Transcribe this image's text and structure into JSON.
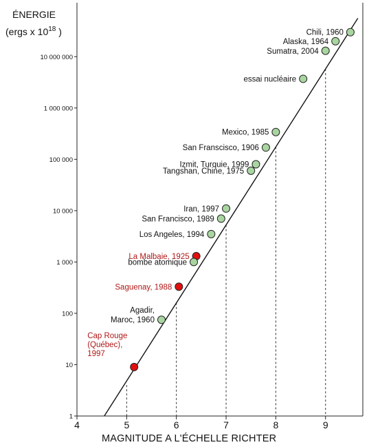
{
  "chart_data": {
    "type": "scatter",
    "ylabel_line1": "ÉNERGIE",
    "ylabel_line2_prefix": "(ergs x 10",
    "ylabel_line2_exp": "18",
    "ylabel_line2_suffix": " )",
    "xlabel": "MAGNITUDE A L'ÉCHELLE RICHTER",
    "xlim": [
      4,
      9.75
    ],
    "ylim_log10": [
      0,
      8.05
    ],
    "y_scale": "log",
    "x_ticks": [
      4,
      5,
      6,
      7,
      8,
      9
    ],
    "x_tick_labels": [
      "4",
      "5",
      "6",
      "7",
      "8",
      "9"
    ],
    "y_ticks": [
      1,
      10,
      100,
      1000,
      10000,
      100000,
      1000000,
      10000000
    ],
    "y_tick_labels": [
      "1",
      "10",
      "100",
      "1 000",
      "10 000",
      "100 000",
      "1 000 000",
      "10 000 000"
    ],
    "trend_line": {
      "x": [
        4.55,
        9.65
      ],
      "y": [
        1,
        56000000
      ]
    },
    "dashed_reference_x": [
      5,
      6,
      7,
      8,
      9
    ],
    "colors": {
      "green_point": "#a9d5a0",
      "red_point": "#e01010",
      "red_label": "#b01818",
      "black_label": "#111111"
    },
    "points": [
      {
        "label": [
          "Chili, 1960"
        ],
        "x": 9.5,
        "y": 30000000,
        "color": "green",
        "label_side": "left"
      },
      {
        "label": [
          "Alaska, 1964"
        ],
        "x": 9.2,
        "y": 20000000,
        "color": "green",
        "label_side": "left"
      },
      {
        "label": [
          "Sumatra, 2004"
        ],
        "x": 9.0,
        "y": 13000000,
        "color": "green",
        "label_side": "left"
      },
      {
        "label": [
          "essai nucléaire"
        ],
        "x": 8.55,
        "y": 3700000,
        "color": "green",
        "label_side": "left"
      },
      {
        "label": [
          "Mexico, 1985"
        ],
        "x": 8.0,
        "y": 340000,
        "color": "green",
        "label_side": "left"
      },
      {
        "label": [
          "San Franscisco, 1906"
        ],
        "x": 7.8,
        "y": 170000,
        "color": "green",
        "label_side": "left"
      },
      {
        "label": [
          "Izmit, Turquie, 1999"
        ],
        "x": 7.6,
        "y": 80000,
        "color": "green",
        "label_side": "left"
      },
      {
        "label": [
          "Tangshan, Chine, 1975"
        ],
        "x": 7.5,
        "y": 60000,
        "color": "green",
        "label_side": "left"
      },
      {
        "label": [
          "Iran, 1997"
        ],
        "x": 7.0,
        "y": 11000,
        "color": "green",
        "label_side": "left"
      },
      {
        "label": [
          "San Francisco, 1989"
        ],
        "x": 6.9,
        "y": 7000,
        "color": "green",
        "label_side": "left"
      },
      {
        "label": [
          "Los Angeles, 1994"
        ],
        "x": 6.7,
        "y": 3500,
        "color": "green",
        "label_side": "left"
      },
      {
        "label": [
          "La Malbaie, 1925"
        ],
        "x": 6.4,
        "y": 1300,
        "color": "red",
        "label_side": "left"
      },
      {
        "label": [
          "bombe atomique"
        ],
        "x": 6.35,
        "y": 1000,
        "color": "green",
        "label_side": "left"
      },
      {
        "label": [
          "Saguenay, 1988"
        ],
        "x": 6.05,
        "y": 330,
        "color": "red",
        "label_side": "left"
      },
      {
        "label": [
          "Agadir,",
          "Maroc, 1960"
        ],
        "x": 5.7,
        "y": 75,
        "color": "green",
        "label_side": "left"
      },
      {
        "label": [
          "Cap Rouge",
          "(Québec),",
          "1997"
        ],
        "x": 5.15,
        "y": 9,
        "color": "red",
        "label_side": "above-left"
      }
    ]
  }
}
